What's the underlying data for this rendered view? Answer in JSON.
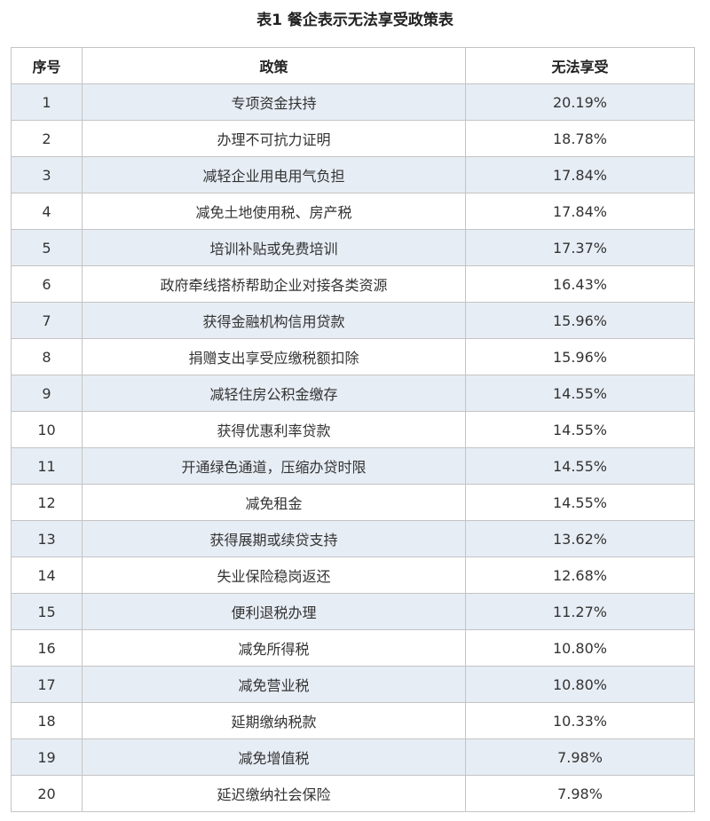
{
  "title": "表1 餐企表示无法享受政策表",
  "table": {
    "headers": [
      "序号",
      "政策",
      "无法享受"
    ],
    "rows": [
      [
        "1",
        "专项资金扶持",
        "20.19%"
      ],
      [
        "2",
        "办理不可抗力证明",
        "18.78%"
      ],
      [
        "3",
        "减轻企业用电用气负担",
        "17.84%"
      ],
      [
        "4",
        "减免土地使用税、房产税",
        "17.84%"
      ],
      [
        "5",
        "培训补贴或免费培训",
        "17.37%"
      ],
      [
        "6",
        "政府牵线搭桥帮助企业对接各类资源",
        "16.43%"
      ],
      [
        "7",
        "获得金融机构信用贷款",
        "15.96%"
      ],
      [
        "8",
        "捐赠支出享受应缴税额扣除",
        "15.96%"
      ],
      [
        "9",
        "减轻住房公积金缴存",
        "14.55%"
      ],
      [
        "10",
        "获得优惠利率贷款",
        "14.55%"
      ],
      [
        "11",
        "开通绿色通道，压缩办贷时限",
        "14.55%"
      ],
      [
        "12",
        "减免租金",
        "14.55%"
      ],
      [
        "13",
        "获得展期或续贷支持",
        "13.62%"
      ],
      [
        "14",
        "失业保险稳岗返还",
        "12.68%"
      ],
      [
        "15",
        "便利退税办理",
        "11.27%"
      ],
      [
        "16",
        "减免所得税",
        "10.80%"
      ],
      [
        "17",
        "减免营业税",
        "10.80%"
      ],
      [
        "18",
        "延期缴纳税款",
        "10.33%"
      ],
      [
        "19",
        "减免增值税",
        "7.98%"
      ],
      [
        "20",
        "延迟缴纳社会保险",
        "7.98%"
      ]
    ]
  },
  "colors": {
    "odd_row_background": "#e7edf5",
    "border": "#c4c4c4"
  }
}
